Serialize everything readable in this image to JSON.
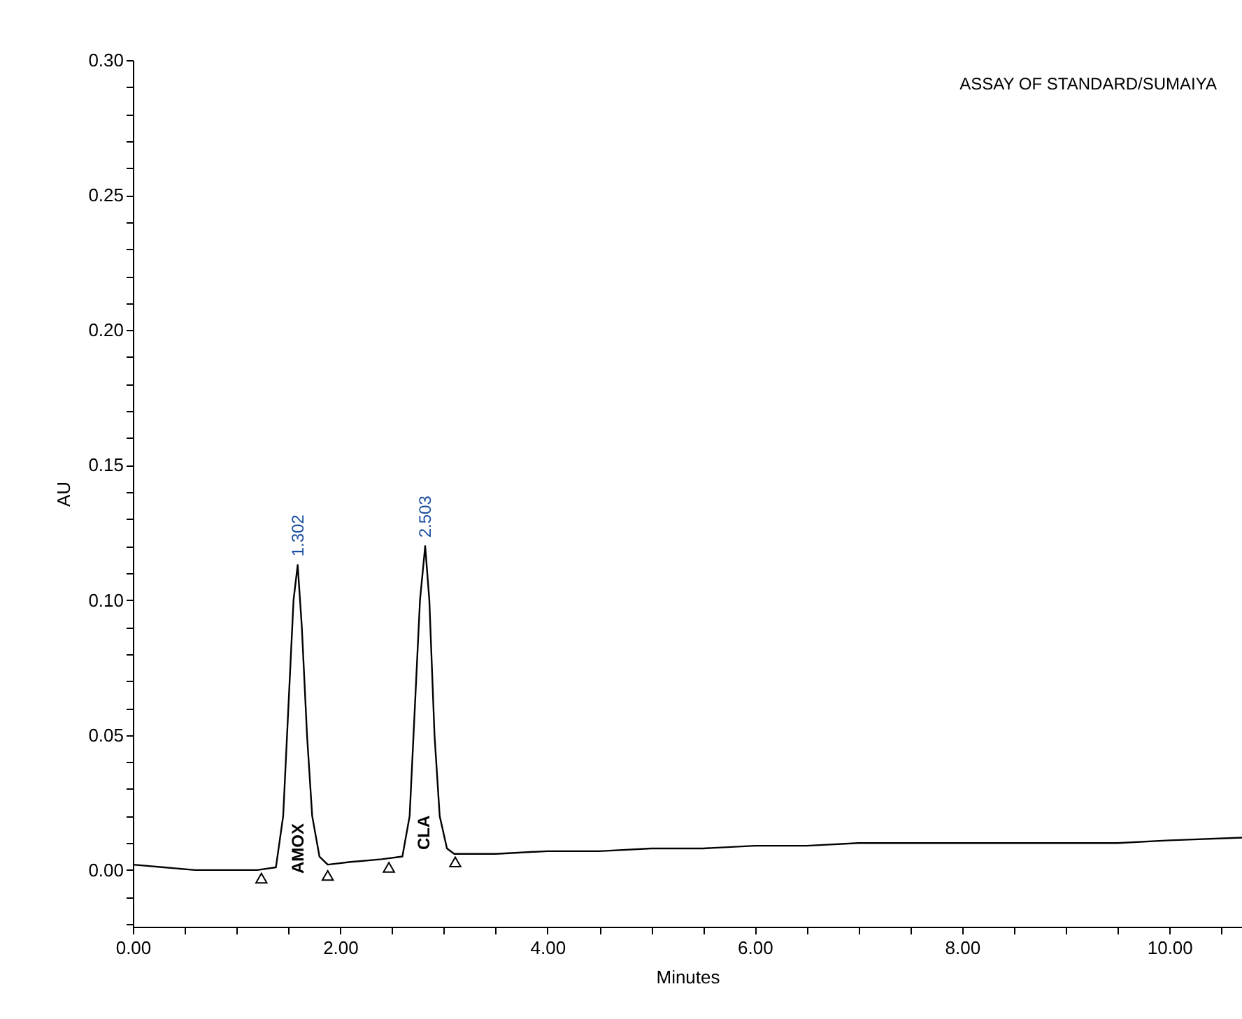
{
  "chart_data": {
    "type": "line",
    "xlabel": "Minutes",
    "ylabel": "AU",
    "xlim": [
      0,
      10.7
    ],
    "ylim": [
      -0.021,
      0.3
    ],
    "xticks": [
      {
        "value": 0,
        "label": "0.00"
      },
      {
        "value": 0.5,
        "label": null
      },
      {
        "value": 1,
        "label": null
      },
      {
        "value": 1.5,
        "label": null
      },
      {
        "value": 2,
        "label": "2.00"
      },
      {
        "value": 2.5,
        "label": null
      },
      {
        "value": 3,
        "label": null
      },
      {
        "value": 3.5,
        "label": null
      },
      {
        "value": 4,
        "label": "4.00"
      },
      {
        "value": 4.5,
        "label": null
      },
      {
        "value": 5,
        "label": null
      },
      {
        "value": 5.5,
        "label": null
      },
      {
        "value": 6,
        "label": "6.00"
      },
      {
        "value": 6.5,
        "label": null
      },
      {
        "value": 7,
        "label": null
      },
      {
        "value": 7.5,
        "label": null
      },
      {
        "value": 8,
        "label": "8.00"
      },
      {
        "value": 8.5,
        "label": null
      },
      {
        "value": 9,
        "label": null
      },
      {
        "value": 9.5,
        "label": null
      },
      {
        "value": 10,
        "label": "10.00"
      },
      {
        "value": 10.5,
        "label": null
      }
    ],
    "yticks": [
      {
        "value": -0.02,
        "label": null
      },
      {
        "value": -0.01,
        "label": null
      },
      {
        "value": 0,
        "label": "0.00"
      },
      {
        "value": 0.01,
        "label": null
      },
      {
        "value": 0.02,
        "label": null
      },
      {
        "value": 0.03,
        "label": null
      },
      {
        "value": 0.04,
        "label": null
      },
      {
        "value": 0.05,
        "label": "0.05"
      },
      {
        "value": 0.06,
        "label": null
      },
      {
        "value": 0.07,
        "label": null
      },
      {
        "value": 0.08,
        "label": null
      },
      {
        "value": 0.09,
        "label": null
      },
      {
        "value": 0.1,
        "label": "0.10"
      },
      {
        "value": 0.11,
        "label": null
      },
      {
        "value": 0.12,
        "label": null
      },
      {
        "value": 0.13,
        "label": null
      },
      {
        "value": 0.14,
        "label": null
      },
      {
        "value": 0.15,
        "label": "0.15"
      },
      {
        "value": 0.16,
        "label": null
      },
      {
        "value": 0.17,
        "label": null
      },
      {
        "value": 0.18,
        "label": null
      },
      {
        "value": 0.19,
        "label": null
      },
      {
        "value": 0.2,
        "label": "0.20"
      },
      {
        "value": 0.21,
        "label": null
      },
      {
        "value": 0.22,
        "label": null
      },
      {
        "value": 0.23,
        "label": null
      },
      {
        "value": 0.24,
        "label": null
      },
      {
        "value": 0.25,
        "label": "0.25"
      },
      {
        "value": 0.26,
        "label": null
      },
      {
        "value": 0.27,
        "label": null
      },
      {
        "value": 0.28,
        "label": null
      },
      {
        "value": 0.29,
        "label": null
      },
      {
        "value": 0.3,
        "label": "0.30"
      }
    ],
    "grid": false,
    "marker": "none",
    "line_style": "solid",
    "series": [
      {
        "color": "#000000",
        "x": [
          0,
          0.3,
          0.6,
          0.9,
          1.2,
          1.38,
          1.45,
          1.5,
          1.55,
          1.59,
          1.63,
          1.68,
          1.73,
          1.8,
          1.88,
          2.1,
          2.4,
          2.6,
          2.67,
          2.72,
          2.77,
          2.82,
          2.86,
          2.91,
          2.96,
          3.03,
          3.1,
          3.5,
          4,
          4.5,
          5,
          5.5,
          6,
          6.5,
          7,
          7.5,
          8,
          8.5,
          9,
          9.5,
          10,
          10.7
        ],
        "values": [
          0.002,
          0.001,
          0.0,
          0.0,
          0.0,
          0.001,
          0.02,
          0.06,
          0.1,
          0.113,
          0.09,
          0.05,
          0.02,
          0.005,
          0.002,
          0.003,
          0.004,
          0.005,
          0.02,
          0.06,
          0.1,
          0.12,
          0.1,
          0.05,
          0.02,
          0.008,
          0.006,
          0.006,
          0.007,
          0.007,
          0.008,
          0.008,
          0.009,
          0.009,
          0.01,
          0.01,
          0.01,
          0.01,
          0.01,
          0.01,
          0.011,
          0.012
        ]
      },
      {
        "type": "scatter",
        "marker": "triangle",
        "color": "#000000",
        "x": [
          1.24,
          1.88,
          2.47,
          3.11
        ],
        "values": [
          -0.003,
          -0.002,
          0.001,
          0.003
        ]
      }
    ],
    "annotations": [
      "ASSAY OF STANDARD/SUMAIYA",
      {
        "text": "1.302",
        "x": 1.59,
        "y": 0.113
      },
      {
        "text": "2.503",
        "x": 2.82,
        "y": 0.12
      },
      "AMOX",
      "CLA"
    ]
  }
}
